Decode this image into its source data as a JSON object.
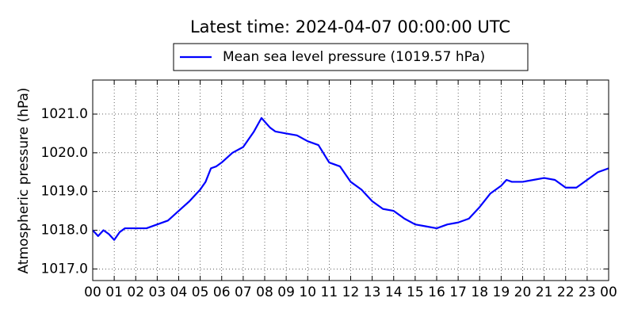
{
  "chart_data": {
    "type": "line",
    "title": "Latest time: 2024-04-07 00:00:00 UTC",
    "y_label": "Atmospheric pressure (hPa)",
    "grid": true,
    "legend": "upper center",
    "x": [
      0,
      0.25,
      0.5,
      0.75,
      1,
      1.25,
      1.5,
      2,
      2.5,
      3,
      3.5,
      4,
      4.5,
      5,
      5.25,
      5.5,
      5.75,
      6,
      6.5,
      7,
      7.5,
      7.85,
      8.25,
      8.5,
      9,
      9.5,
      10,
      10.5,
      11,
      11.5,
      12,
      12.5,
      13,
      13.5,
      14,
      14.5,
      15,
      15.5,
      16,
      16.5,
      17,
      17.5,
      18,
      18.5,
      19,
      19.25,
      19.5,
      20,
      20.5,
      21,
      21.5,
      22,
      22.5,
      23,
      23.5,
      24
    ],
    "series": [
      {
        "name": "Mean sea level pressure (1019.57 hPa)",
        "color": "#0000ff",
        "values": [
          1018.0,
          1017.85,
          1018.0,
          1017.9,
          1017.75,
          1017.95,
          1018.05,
          1018.05,
          1018.05,
          1018.15,
          1018.25,
          1018.5,
          1018.75,
          1019.05,
          1019.25,
          1019.6,
          1019.65,
          1019.75,
          1020.0,
          1020.15,
          1020.55,
          1020.9,
          1020.65,
          1020.55,
          1020.5,
          1020.45,
          1020.3,
          1020.2,
          1019.75,
          1019.65,
          1019.25,
          1019.05,
          1018.75,
          1018.55,
          1018.5,
          1018.3,
          1018.15,
          1018.1,
          1018.05,
          1018.15,
          1018.2,
          1018.3,
          1018.6,
          1018.95,
          1019.15,
          1019.3,
          1019.25,
          1019.25,
          1019.3,
          1019.35,
          1019.3,
          1019.1,
          1019.1,
          1019.3,
          1019.5,
          1019.6
        ]
      }
    ],
    "xlim": [
      0,
      24
    ],
    "xticks": [
      {
        "value": 0,
        "label": "00"
      },
      {
        "value": 1,
        "label": "01"
      },
      {
        "value": 2,
        "label": "02"
      },
      {
        "value": 3,
        "label": "03"
      },
      {
        "value": 4,
        "label": "04"
      },
      {
        "value": 5,
        "label": "05"
      },
      {
        "value": 6,
        "label": "06"
      },
      {
        "value": 7,
        "label": "07"
      },
      {
        "value": 8,
        "label": "08"
      },
      {
        "value": 9,
        "label": "09"
      },
      {
        "value": 10,
        "label": "10"
      },
      {
        "value": 11,
        "label": "11"
      },
      {
        "value": 12,
        "label": "12"
      },
      {
        "value": 13,
        "label": "13"
      },
      {
        "value": 14,
        "label": "14"
      },
      {
        "value": 15,
        "label": "15"
      },
      {
        "value": 16,
        "label": "16"
      },
      {
        "value": 17,
        "label": "17"
      },
      {
        "value": 18,
        "label": "18"
      },
      {
        "value": 19,
        "label": "19"
      },
      {
        "value": 20,
        "label": "20"
      },
      {
        "value": 21,
        "label": "21"
      },
      {
        "value": 22,
        "label": "22"
      },
      {
        "value": 23,
        "label": "23"
      },
      {
        "value": 24,
        "label": "00"
      }
    ],
    "ylim": [
      1016.7,
      1021.88
    ],
    "yticks": [
      {
        "value": 1017,
        "label": "1017.0"
      },
      {
        "value": 1018,
        "label": "1018.0"
      },
      {
        "value": 1019,
        "label": "1019.0"
      },
      {
        "value": 1020,
        "label": "1020.0"
      },
      {
        "value": 1021,
        "label": "1021.0"
      }
    ]
  }
}
